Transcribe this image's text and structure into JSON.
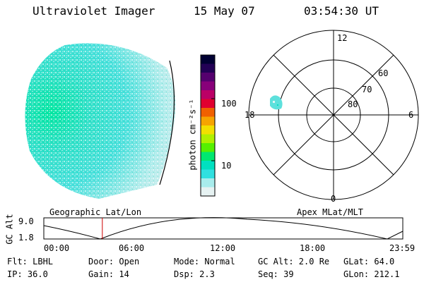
{
  "header": {
    "instrument": "Ultraviolet Imager",
    "date": "15 May 07",
    "time": "03:54:30 UT"
  },
  "colorbar": {
    "label": "photon cm⁻²s⁻¹",
    "ticks": [
      "100",
      "10"
    ],
    "colors": [
      "#000033",
      "#220055",
      "#55006e",
      "#88007a",
      "#bb0066",
      "#e00030",
      "#f06000",
      "#f6a400",
      "#f2e000",
      "#b0f000",
      "#56f000",
      "#00e870",
      "#00e0c0",
      "#30e0e0",
      "#a8ecec",
      "#e6f2f2"
    ]
  },
  "polar": {
    "mlt_labels": {
      "top": "12",
      "left": "18",
      "right": "6",
      "bottom": "0"
    },
    "lat_labels": [
      "60",
      "70",
      "80"
    ]
  },
  "timeline": {
    "left_label": "Geographic Lat/Lon",
    "right_label": "Apex MLat/MLT",
    "axis_label": "GC Alt",
    "y_max": "9.0",
    "y_min": "1.8",
    "time_ticks": [
      "00:00",
      "06:00",
      "12:00",
      "18:00",
      "23:59"
    ],
    "current_time_fraction": 0.163
  },
  "info": {
    "flt": "Flt: LBHL",
    "ip": "IP: 36.0",
    "door": "Door: Open",
    "gain": "Gain: 14",
    "mode": "Mode: Normal",
    "dsp": "Dsp:    2.3",
    "gc_alt": "GC Alt: 2.0 Re",
    "seq": "Seq: 39",
    "glat": "GLat:   64.0",
    "glon": "GLon: 212.1"
  }
}
